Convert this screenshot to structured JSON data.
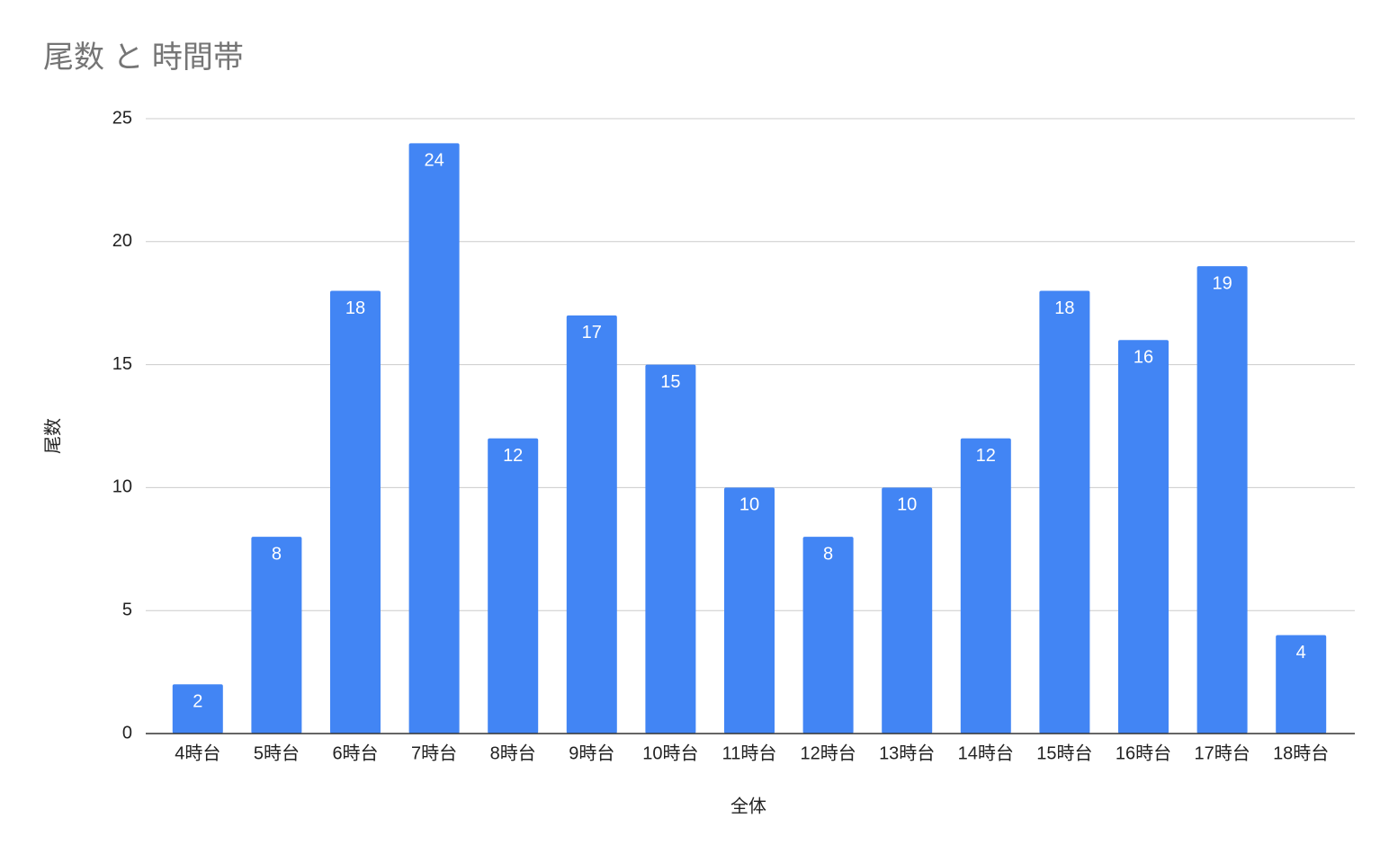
{
  "chart_data": {
    "type": "bar",
    "title": "尾数 と 時間帯",
    "x_label": "全体",
    "y_label": "尾数",
    "categories": [
      "4時台",
      "5時台",
      "6時台",
      "7時台",
      "8時台",
      "9時台",
      "10時台",
      "11時台",
      "12時台",
      "13時台",
      "14時台",
      "15時台",
      "16時台",
      "17時台",
      "18時台"
    ],
    "values": [
      2,
      8,
      18,
      24,
      12,
      17,
      15,
      10,
      8,
      10,
      12,
      18,
      16,
      19,
      4
    ],
    "color": "#4285f4",
    "ylim": [
      0,
      25
    ],
    "yticks": [
      0,
      5,
      10,
      15,
      20,
      25
    ],
    "grid": true,
    "data_labels": true
  }
}
